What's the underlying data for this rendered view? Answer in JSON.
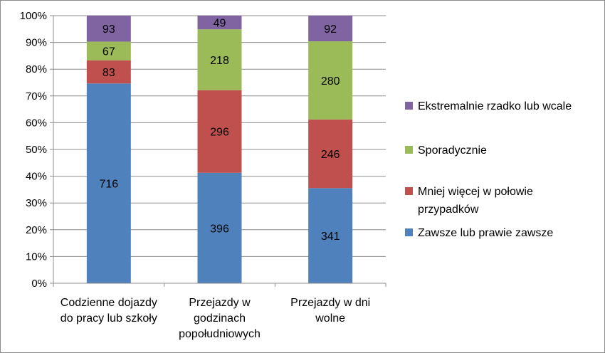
{
  "chart_data": {
    "type": "bar",
    "stacked": "percent",
    "title": "",
    "xlabel": "",
    "ylabel": "",
    "ylim": [
      0,
      100
    ],
    "yticks": [
      "0%",
      "10%",
      "20%",
      "30%",
      "40%",
      "50%",
      "60%",
      "70%",
      "80%",
      "90%",
      "100%"
    ],
    "grid": true,
    "legend_position": "right",
    "categories": [
      [
        "Codzienne dojazdy",
        "do pracy lub szkoły"
      ],
      [
        "Przejazdy w",
        "godzinach",
        "popołudniowych"
      ],
      [
        "Przejazdy w dni",
        "wolne"
      ]
    ],
    "series": [
      {
        "name": [
          "Zawsze lub prawie zawsze"
        ],
        "color": "#4f81bd",
        "values": [
          716,
          396,
          341
        ]
      },
      {
        "name": [
          "Mniej więcej w połowie",
          "przypadków"
        ],
        "color": "#c0504d",
        "values": [
          83,
          296,
          246
        ]
      },
      {
        "name": [
          "Sporadycznie"
        ],
        "color": "#9bbb59",
        "values": [
          67,
          218,
          280
        ]
      },
      {
        "name": [
          "Ekstremalnie rzadko lub wcale"
        ],
        "color": "#8064a2",
        "values": [
          93,
          49,
          92
        ]
      }
    ],
    "legend_order": [
      3,
      2,
      1,
      0
    ]
  }
}
